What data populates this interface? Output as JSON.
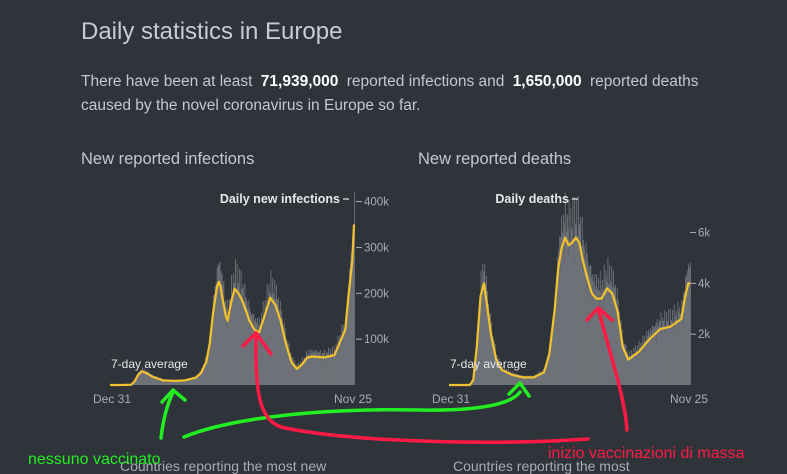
{
  "page": {
    "title": "Daily statistics in Europe",
    "intro_prefix": "There have been at least",
    "infections_total": "71,939,000",
    "intro_middle": "reported infections and",
    "deaths_total": "1,650,000",
    "intro_suffix": "reported deaths caused by the novel coronavirus in Europe so far.",
    "bottom_left": "Countries reporting the most new",
    "bottom_right": "Countries reporting the most"
  },
  "annotations": {
    "green_text": "nessuno vaccinato",
    "red_text": "inizio vaccinazioni di massa",
    "green_color": "#22ee22",
    "red_color": "#ff1a44"
  },
  "colors": {
    "bars": "#6f7379",
    "line": "#f2c12e",
    "text": "#c4c8ce",
    "axis": "#a8adb4"
  },
  "chart_data": [
    {
      "type": "area",
      "title": "New reported infections",
      "series_label": "Daily new infections",
      "avg_label": "7-day average",
      "x_labels": [
        "Dec 31",
        "Nov 25"
      ],
      "y_ticks": [
        "100k",
        "200k",
        "300k",
        "400k"
      ],
      "y_tick_values": [
        100000,
        200000,
        300000,
        400000
      ],
      "ylim": [
        0,
        410000
      ],
      "x": [
        "2019-12-31",
        "2020-01-31",
        "2020-02-29",
        "2020-03-10",
        "2020-03-20",
        "2020-03-31",
        "2020-04-15",
        "2020-04-30",
        "2020-05-31",
        "2020-06-30",
        "2020-07-31",
        "2020-08-31",
        "2020-09-15",
        "2020-09-30",
        "2020-10-10",
        "2020-10-20",
        "2020-10-31",
        "2020-11-05",
        "2020-11-10",
        "2020-11-15",
        "2020-11-20",
        "2020-11-25",
        "2020-11-30",
        "2020-12-10",
        "2020-12-20",
        "2020-12-31",
        "2021-01-10",
        "2021-01-20",
        "2021-01-31",
        "2021-02-15",
        "2021-02-28",
        "2021-03-15",
        "2021-03-31",
        "2021-04-15",
        "2021-04-30",
        "2021-05-15",
        "2021-05-31",
        "2021-06-15",
        "2021-06-30",
        "2021-07-15",
        "2021-07-31",
        "2021-08-31",
        "2021-09-30",
        "2021-10-31",
        "2021-11-10",
        "2021-11-20",
        "2021-11-25"
      ],
      "values": [
        0,
        0,
        500,
        8000,
        22000,
        30000,
        25000,
        18000,
        10000,
        9000,
        10000,
        16000,
        26000,
        50000,
        90000,
        160000,
        215000,
        225000,
        215000,
        190000,
        170000,
        150000,
        140000,
        180000,
        210000,
        200000,
        185000,
        165000,
        140000,
        120000,
        115000,
        150000,
        190000,
        175000,
        140000,
        90000,
        50000,
        35000,
        45000,
        60000,
        62000,
        60000,
        65000,
        120000,
        200000,
        270000,
        350000
      ]
    },
    {
      "type": "area",
      "title": "New reported deaths",
      "series_label": "Daily deaths",
      "avg_label": "7-day average",
      "x_labels": [
        "Dec 31",
        "Nov 25"
      ],
      "y_ticks": [
        "2k",
        "4k",
        "6k"
      ],
      "y_tick_values": [
        2000,
        4000,
        6000
      ],
      "ylim": [
        0,
        7400
      ],
      "x": [
        "2019-12-31",
        "2020-01-31",
        "2020-02-29",
        "2020-03-10",
        "2020-03-20",
        "2020-03-31",
        "2020-04-10",
        "2020-04-20",
        "2020-04-30",
        "2020-05-15",
        "2020-05-31",
        "2020-06-30",
        "2020-07-31",
        "2020-08-31",
        "2020-09-30",
        "2020-10-15",
        "2020-10-31",
        "2020-11-10",
        "2020-11-20",
        "2020-11-30",
        "2020-12-10",
        "2020-12-20",
        "2020-12-31",
        "2021-01-10",
        "2021-01-20",
        "2021-01-31",
        "2021-02-15",
        "2021-02-28",
        "2021-03-15",
        "2021-03-31",
        "2021-04-15",
        "2021-04-30",
        "2021-05-15",
        "2021-05-31",
        "2021-06-30",
        "2021-07-31",
        "2021-08-31",
        "2021-09-30",
        "2021-10-31",
        "2021-11-10",
        "2021-11-20",
        "2021-11-25"
      ],
      "values": [
        0,
        0,
        0,
        200,
        1500,
        3500,
        4000,
        3000,
        2000,
        1000,
        600,
        400,
        300,
        300,
        500,
        1200,
        3000,
        4600,
        5400,
        5800,
        5500,
        5600,
        5800,
        5600,
        4900,
        4300,
        3600,
        3400,
        3400,
        3800,
        3600,
        2900,
        1500,
        1000,
        1300,
        1800,
        2200,
        2300,
        2600,
        3400,
        4000,
        4000
      ]
    }
  ]
}
